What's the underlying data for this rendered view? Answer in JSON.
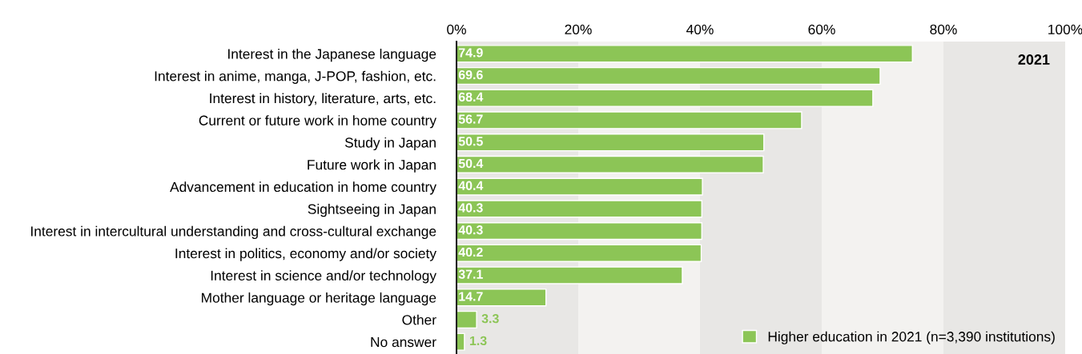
{
  "chart_data": {
    "type": "bar",
    "orientation": "horizontal",
    "categories": [
      "Interest in the Japanese language",
      "Interest in anime, manga, J-POP, fashion, etc.",
      "Interest in history, literature, arts, etc.",
      "Current or future work in home country",
      "Study in Japan",
      "Future work in Japan",
      "Advancement in education in home country",
      "Sightseeing in Japan",
      "Interest in intercultural understanding and cross-cultural exchange",
      "Interest in politics, economy and/or society",
      "Interest in science and/or technology",
      "Mother language or heritage language",
      "Other",
      "No answer"
    ],
    "series": [
      {
        "name": "Higher education in 2021 (n=3,390 institutions)",
        "color": "#8cc556",
        "values": [
          74.9,
          69.6,
          68.4,
          56.7,
          50.5,
          50.4,
          40.4,
          40.3,
          40.3,
          40.2,
          37.1,
          14.7,
          3.3,
          1.3
        ]
      }
    ],
    "xlim": [
      0,
      100
    ],
    "xticks": [
      {
        "value": 0,
        "label": "0%"
      },
      {
        "value": 20,
        "label": "20%"
      },
      {
        "value": 40,
        "label": "40%"
      },
      {
        "value": 60,
        "label": "60%"
      },
      {
        "value": 80,
        "label": "80%"
      },
      {
        "value": 100,
        "label": "100%"
      }
    ],
    "bands": [
      {
        "axis": "x",
        "from": 0,
        "to": 20,
        "color": "#e8e7e5"
      },
      {
        "axis": "x",
        "from": 20,
        "to": 40,
        "color": "#f3f2f0"
      },
      {
        "axis": "x",
        "from": 40,
        "to": 60,
        "color": "#e8e7e5"
      },
      {
        "axis": "x",
        "from": 60,
        "to": 80,
        "color": "#f3f2f0"
      },
      {
        "axis": "x",
        "from": 80,
        "to": 100,
        "color": "#e8e7e5"
      }
    ],
    "annotations": [
      "2021"
    ],
    "data_labels": true,
    "grid": false,
    "legend": "bottom right"
  }
}
